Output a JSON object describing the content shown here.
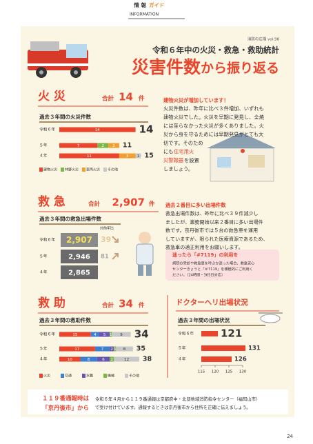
{
  "header": {
    "label1": "情 報",
    "label2": "ガイド",
    "sub": "INFORMATION"
  },
  "title": {
    "series": "消防の広場 vol.98",
    "main": "令和６年中の火災・救急・救助統計",
    "headline1": "災害件数",
    "headline2": "から振り返る"
  },
  "fire": {
    "heading": "火 災",
    "total_label": "合計",
    "total": 14,
    "unit": "件",
    "chart_title": "過去３年間の火災件数",
    "years": [
      "令和６年",
      "５年",
      "４年"
    ],
    "legend": [
      {
        "name": "建物火災",
        "color": "#e8452c"
      },
      {
        "name": "林野火災",
        "color": "#7ab648"
      },
      {
        "name": "車両火災",
        "color": "#f0a030"
      },
      {
        "name": "その他",
        "color": "#c8c8c8"
      }
    ],
    "segments": [
      [
        14,
        null,
        null,
        null
      ],
      [
        7,
        2,
        2,
        null
      ],
      [
        11,
        null,
        3,
        1
      ]
    ],
    "totals": [
      14,
      11,
      15
    ],
    "note_title": "建物火災が増加しています！",
    "note_lines": [
      "火災件数は、昨年に比べ３件増加、いずれも",
      "建物火災でした。火災を早期に発見し、全焼",
      "には至らなかった火災が多くありました。火",
      "災から身を守るためには早期発見がとても大",
      "切です。そのため"
    ],
    "note_tail": [
      "にも",
      "住宅用火",
      "災警報器",
      "を設置",
      "しましょう。"
    ]
  },
  "ems": {
    "heading": "救 急",
    "total_label": "合計",
    "total": "2,907",
    "unit": "件",
    "chart_title": "過去３年間の救急出場件数",
    "change_label": "対前年比",
    "years": [
      "令和６年",
      "５年",
      "４年"
    ],
    "values": [
      "2,907",
      "2,946",
      "2,865"
    ],
    "changes": [
      39,
      81,
      null
    ],
    "note_title": "過去２番目に多い出場件数",
    "note_lines": [
      "救急出場件数は、昨年に比べ３９件減少し",
      "ましたが、業務開始以来２番目に多い出場件",
      "数です。京丹後市では５台の救急車を運用",
      "していますが、限られた医療資源であるため、",
      "救急車の適正利用をお願いします。"
    ],
    "box_title": "迷ったら「#7119」の利用を",
    "box_lines": [
      "病院の受診や救急車を呼ぶか迷った場合、救急安心",
      "センターきょうと「＃7119」を積極的にご利用く",
      "ださい。（24時間・365日対応）"
    ]
  },
  "rescue": {
    "heading": "救 助",
    "total_label": "合計",
    "total": 34,
    "unit": "件",
    "chart_title": "過去３年間の救助件数",
    "years": [
      "令和６年",
      "５年",
      "４年"
    ],
    "legend": [
      {
        "name": "火災",
        "color": "#e8452c"
      },
      {
        "name": "交通",
        "color": "#3f7fd0"
      },
      {
        "name": "水難",
        "color": "#6a55b0"
      },
      {
        "name": "機械",
        "color": "#7ab648"
      },
      {
        "name": "その他",
        "color": "#c8c8c8"
      }
    ],
    "segments": [
      [
        15,
        4,
        5,
        1,
        9
      ],
      [
        17,
        7,
        2,
        1,
        8
      ],
      [
        10,
        8,
        6,
        2,
        12
      ]
    ],
    "totals": [
      34,
      35,
      38
    ]
  },
  "heli": {
    "heading": "ドクターヘリ出場状況",
    "chart_title": "過去３年間の出場状況",
    "years": [
      "令和６年",
      "５年",
      "４年"
    ],
    "values": [
      121,
      131,
      126
    ],
    "color": "#e8452c",
    "xlim": [
      115,
      130
    ],
    "xticks": [
      115,
      120,
      125,
      130
    ]
  },
  "footer": {
    "lead1": "１１９番通報時は",
    "lead2": "「京丹後市」から",
    "lines": [
      "令和６年４月から１１９番通報は京都府中・北部地域消防指令センター（福知山市）",
      "で受け付けています。通報するときは京丹後市から住所を正確に伝えましょう。"
    ],
    "page": "24"
  }
}
